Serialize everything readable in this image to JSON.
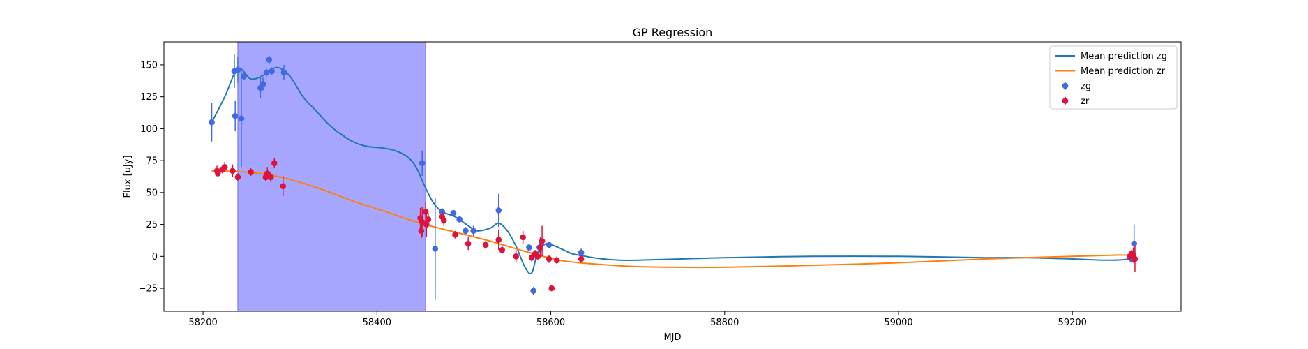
{
  "chart_data": {
    "type": "scatter",
    "title": "GP Regression",
    "xlabel": "MJD",
    "ylabel": "Flux [uJy]",
    "xlim": [
      58155,
      59325
    ],
    "ylim": [
      -43,
      168
    ],
    "xticks": [
      58200,
      58400,
      58600,
      58800,
      59000,
      59200
    ],
    "yticks": [
      -25,
      0,
      25,
      50,
      75,
      100,
      125,
      150
    ],
    "legend_position": "top-right",
    "grid": false,
    "shaded_region": {
      "x_start": 58240,
      "x_end": 58456,
      "color": "#a6a6ff"
    },
    "series": [
      {
        "name": "Mean prediction zg",
        "kind": "line",
        "color": "#1f77b4",
        "x": [
          58210,
          58225,
          58240,
          58255,
          58270,
          58285,
          58300,
          58315,
          58330,
          58345,
          58360,
          58375,
          58390,
          58405,
          58420,
          58435,
          58445,
          58455,
          58465,
          58475,
          58490,
          58505,
          58515,
          58530,
          58540,
          58550,
          58560,
          58570,
          58578,
          58585,
          58595,
          58605,
          58615,
          58625,
          58640,
          58660,
          58680,
          58700,
          58750,
          58800,
          58900,
          59000,
          59100,
          59150,
          59200,
          59240,
          59265,
          59272
        ],
        "y": [
          105,
          125,
          147,
          139,
          142,
          148,
          141,
          125,
          114,
          103,
          95,
          89,
          86,
          85,
          83,
          78,
          70,
          55,
          42,
          35,
          31,
          24,
          20,
          22,
          26,
          20,
          8,
          -8,
          -13,
          3,
          10,
          8,
          5,
          2,
          0,
          -2,
          -3,
          -3,
          -2,
          -1,
          0,
          0,
          -1,
          -1,
          -2,
          -3,
          -2,
          2
        ]
      },
      {
        "name": "Mean prediction zr",
        "kind": "line",
        "color": "#ff7f0e",
        "x": [
          58210,
          58250,
          58290,
          58330,
          58370,
          58410,
          58450,
          58490,
          58530,
          58570,
          58610,
          58650,
          58700,
          58750,
          58800,
          58900,
          59000,
          59100,
          59200,
          59250,
          59272
        ],
        "y": [
          67,
          66,
          62,
          54,
          44,
          35,
          26,
          19,
          12,
          4,
          -3,
          -6,
          -8,
          -8.5,
          -8.5,
          -7,
          -5,
          -2,
          0,
          1,
          1
        ]
      },
      {
        "name": "zg",
        "kind": "errorbar",
        "color": "#4169e1",
        "x": [
          58210,
          58236,
          58237,
          58240,
          58244,
          58247,
          58266,
          58269,
          58273,
          58276,
          58279,
          58293,
          58452,
          58467,
          58475,
          58488,
          58495,
          58502,
          58511,
          58540,
          58575,
          58580,
          58587,
          58598,
          58635,
          59268,
          59271
        ],
        "y": [
          105,
          145,
          110,
          146,
          108,
          141,
          132,
          135,
          144,
          154,
          145,
          144,
          73,
          6,
          35,
          34,
          29,
          20,
          20,
          36,
          7,
          -27,
          7,
          9,
          3,
          -2,
          10
        ],
        "yerr": [
          15,
          13,
          12,
          10,
          38,
          3,
          8,
          5,
          3,
          3,
          3,
          6,
          10,
          40,
          3,
          2,
          2,
          3,
          4,
          13,
          3,
          3,
          4,
          2,
          3,
          3,
          15
        ]
      },
      {
        "name": "zr",
        "kind": "errorbar",
        "color": "#dc143c",
        "x": [
          58216,
          58217,
          58222,
          58225,
          58234,
          58240,
          58255,
          58272,
          58274,
          58278,
          58282,
          58292,
          58450,
          58451,
          58452,
          58456,
          58457,
          58459,
          58475,
          58477,
          58490,
          58505,
          58525,
          58540,
          58544,
          58560,
          58568,
          58578,
          58582,
          58585,
          58588,
          58590,
          58598,
          58601,
          58607,
          58635,
          59266,
          59268,
          59270,
          59272
        ],
        "y": [
          67,
          65,
          68,
          70,
          67,
          62,
          66,
          62,
          65,
          62,
          73,
          55,
          30,
          20,
          27,
          35,
          25,
          29,
          31,
          28,
          17,
          10,
          9,
          13,
          5,
          0,
          15,
          -1,
          2,
          0,
          7,
          12,
          -2,
          -25,
          -3,
          -2,
          0,
          2,
          1,
          -2
        ],
        "yerr": [
          4,
          3,
          3,
          4,
          5,
          3,
          3,
          3,
          5,
          4,
          4,
          8,
          8,
          6,
          12,
          8,
          10,
          5,
          5,
          4,
          3,
          5,
          3,
          8,
          3,
          5,
          5,
          3,
          3,
          3,
          8,
          12,
          3,
          2,
          3,
          3,
          3,
          3,
          6,
          10
        ]
      }
    ]
  }
}
